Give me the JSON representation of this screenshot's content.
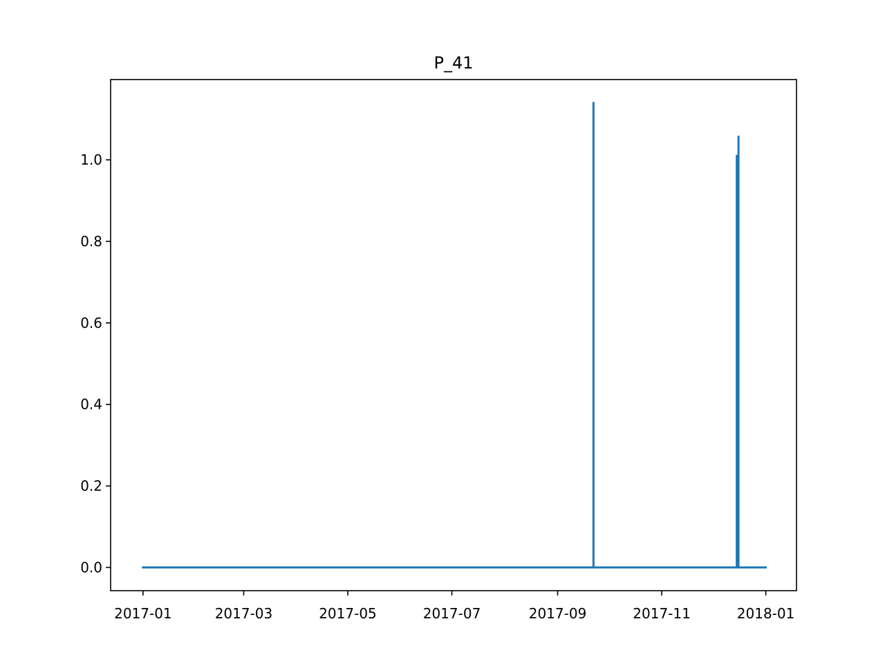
{
  "chart_data": {
    "type": "line",
    "title": "P_41",
    "xlabel": "",
    "ylabel": "",
    "x_axis_type": "date",
    "xlim": [
      "2016-12-13",
      "2018-01-19"
    ],
    "ylim": [
      -0.057,
      1.197
    ],
    "x_ticks": [
      "2017-01-01",
      "2017-03-01",
      "2017-05-01",
      "2017-07-01",
      "2017-09-01",
      "2017-11-01",
      "2018-01-01"
    ],
    "x_tick_labels": [
      "2017-01",
      "2017-03",
      "2017-05",
      "2017-07",
      "2017-09",
      "2017-11",
      "2018-01"
    ],
    "y_ticks": [
      0.0,
      0.2,
      0.4,
      0.6,
      0.8,
      1.0
    ],
    "y_tick_labels": [
      "0.0",
      "0.2",
      "0.4",
      "0.6",
      "0.8",
      "1.0"
    ],
    "grid": false,
    "legend": "none",
    "series": [
      {
        "color": "#1f77b4",
        "points": [
          [
            "2017-01-01",
            0.0
          ],
          [
            "2017-09-22",
            0.0
          ],
          [
            "2017-09-22",
            1.14
          ],
          [
            "2017-09-22",
            0.0
          ],
          [
            "2017-12-15",
            0.0
          ],
          [
            "2017-12-15",
            1.01
          ],
          [
            "2017-12-15",
            0.0
          ],
          [
            "2017-12-16",
            0.0
          ],
          [
            "2017-12-16",
            1.057
          ],
          [
            "2017-12-16",
            0.0
          ],
          [
            "2018-01-01",
            0.0
          ]
        ]
      }
    ]
  }
}
